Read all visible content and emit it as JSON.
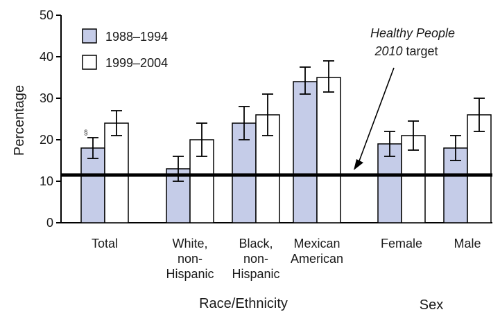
{
  "chart_data": {
    "type": "bar",
    "ylabel": "Percentage",
    "ylim": [
      0,
      50
    ],
    "yticks": [
      "0",
      "10",
      "20",
      "30",
      "40",
      "50"
    ],
    "categories": [
      [
        "Total"
      ],
      [
        "White,",
        "non-",
        "Hispanic"
      ],
      [
        "Black,",
        "non-",
        "Hispanic"
      ],
      [
        "Mexican",
        "American"
      ],
      [
        "Female"
      ],
      [
        "Male"
      ]
    ],
    "series": [
      {
        "name": "1988–1994",
        "color": "#c5cce8",
        "values": [
          18,
          13,
          24,
          34,
          19,
          18
        ],
        "ci_low": [
          15.5,
          10,
          20,
          31,
          16,
          15
        ],
        "ci_high": [
          20.5,
          16,
          28,
          37.5,
          22,
          21
        ]
      },
      {
        "name": "1999–2004",
        "color": "#ffffff",
        "values": [
          24,
          20,
          26,
          35,
          21,
          26
        ],
        "ci_low": [
          21,
          16,
          21,
          31.5,
          17.5,
          22
        ],
        "ci_high": [
          27,
          24,
          31,
          39,
          24.5,
          30
        ]
      }
    ],
    "target": {
      "value": 11.5,
      "label_italic_1": "Healthy People",
      "label_italic_2": "2010",
      "label_rest": " target"
    },
    "footnote_marker": "§",
    "group_labels": [
      "Race/Ethnicity",
      "Sex"
    ],
    "legend_position": "top-left"
  }
}
